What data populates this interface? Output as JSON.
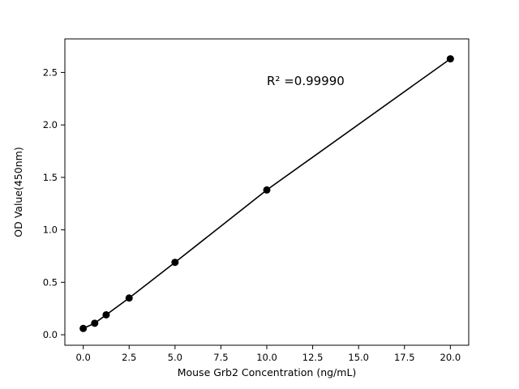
{
  "chart_data": {
    "type": "scatter",
    "x": [
      0,
      0.625,
      1.25,
      2.5,
      5,
      10,
      20
    ],
    "y": [
      0.06,
      0.11,
      0.19,
      0.35,
      0.69,
      1.38,
      2.63
    ],
    "title": "",
    "xlabel": "Mouse Grb2 Concentration (ng/mL)",
    "ylabel": "OD Value(450nm)",
    "annotation": "R² =0.99990",
    "annotation_xy": [
      10,
      2.38
    ],
    "xticks": [
      0,
      2.5,
      5,
      7.5,
      10,
      12.5,
      15,
      17.5,
      20
    ],
    "yticks": [
      0,
      0.5,
      1,
      1.5,
      2,
      2.5
    ],
    "xlim": [
      -1,
      21
    ],
    "ylim": [
      -0.1,
      2.82
    ],
    "grid": false,
    "legend": "none",
    "line": true,
    "line_color": "#000000",
    "marker_color": "#000000",
    "background": "#ffffff"
  }
}
